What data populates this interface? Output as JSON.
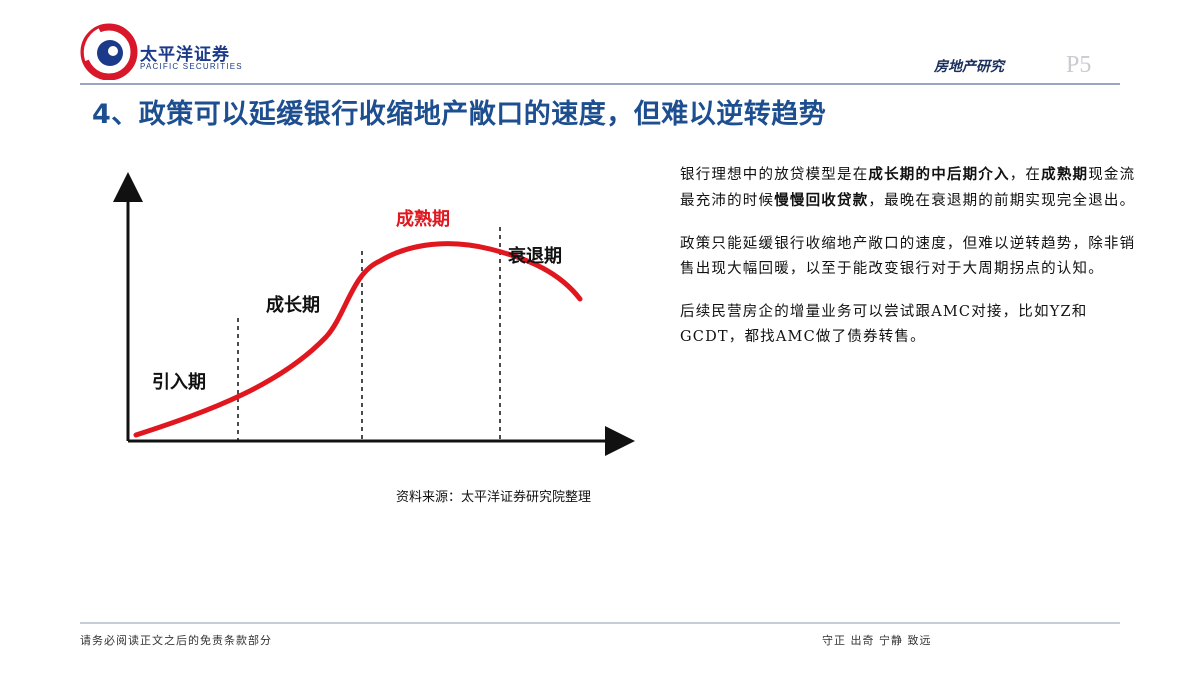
{
  "header": {
    "logo_cn": "太平洋证券",
    "logo_en": "PACIFIC SECURITIES",
    "section": "房地产研究",
    "page": "P5"
  },
  "title": "4、政策可以延缓银行收缩地产敞口的速度，但难以逆转趋势",
  "diagram": {
    "stages": [
      "引入期",
      "成长期",
      "成熟期",
      "衰退期"
    ],
    "colors": {
      "curve": "#e0171e",
      "mature_label": "#e0171e",
      "axis": "#111111"
    }
  },
  "source": "资料来源：太平洋证券研究院整理",
  "body": {
    "p1": [
      {
        "t": "银行理想中的放贷模型是在",
        "b": false
      },
      {
        "t": "成长期的中后期介入",
        "b": true
      },
      {
        "t": "，在",
        "b": false
      },
      {
        "t": "成熟期",
        "b": true
      },
      {
        "t": "现金流最充沛的时候",
        "b": false
      },
      {
        "t": "慢慢回收贷款",
        "b": true
      },
      {
        "t": "，最晚在衰退期的前期实现完全退出。",
        "b": false
      }
    ],
    "p2": "政策只能延缓银行收缩地产敞口的速度，但难以逆转趋势，除非销售出现大幅回暖，以至于能改变银行对于大周期拐点的认知。",
    "p3": "后续民营房企的增量业务可以尝试跟AMC对接，比如YZ和GCDT，都找AMC做了债券转售。"
  },
  "footer": {
    "left": "请务必阅读正文之后的免责条款部分",
    "right": "守正  出奇  宁静  致远"
  }
}
